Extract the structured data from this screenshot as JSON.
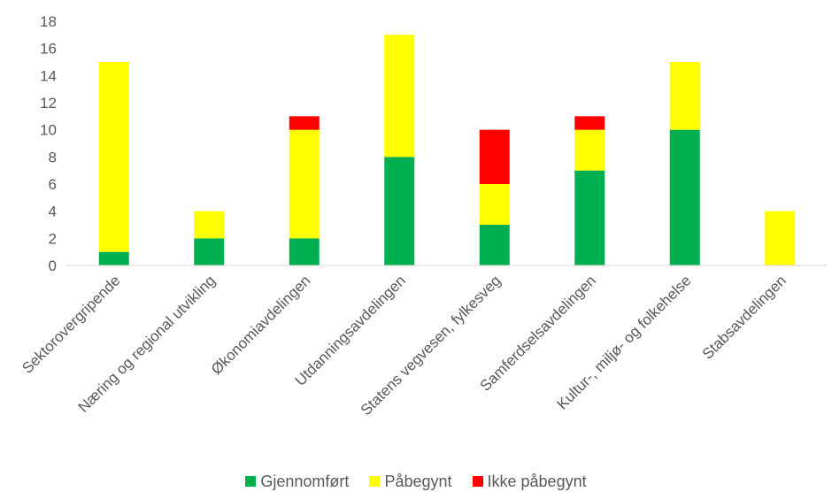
{
  "chart_data": {
    "type": "bar",
    "stacked": true,
    "title": "",
    "xlabel": "",
    "ylabel": "",
    "ylim": [
      0,
      18
    ],
    "yticks": [
      0,
      2,
      4,
      6,
      8,
      10,
      12,
      14,
      16,
      18
    ],
    "grid": false,
    "legend_position": "bottom",
    "categories": [
      "Sektorovergripende",
      "Næring og regional utvikling",
      "Økonomiavdelingen",
      "Utdanningsavdelingen",
      "Statens vegvesen, fylkesveg",
      "Samferdselsavdelingen",
      "Kultur-, miljø- og folkehelse",
      "Stabsavdelingen"
    ],
    "series": [
      {
        "name": "Gjennomført",
        "color": "#00b050",
        "values": [
          1,
          2,
          2,
          8,
          3,
          7,
          10,
          0
        ]
      },
      {
        "name": "Påbegynt",
        "color": "#ffff00",
        "values": [
          14,
          2,
          8,
          9,
          3,
          3,
          5,
          4
        ]
      },
      {
        "name": "Ikke påbegynt",
        "color": "#ff0000",
        "values": [
          0,
          0,
          1,
          0,
          4,
          1,
          0,
          0
        ]
      }
    ]
  }
}
